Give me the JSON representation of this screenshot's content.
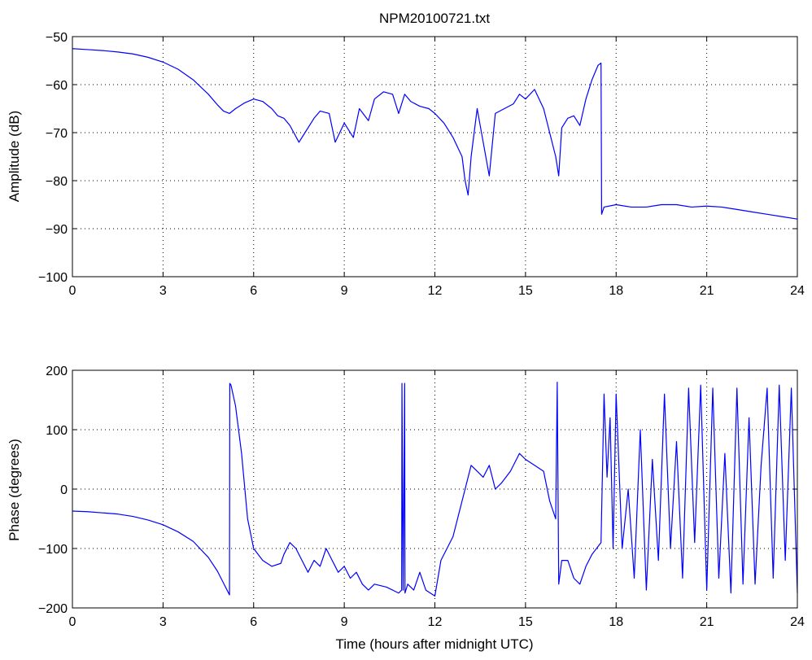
{
  "chart_data": [
    {
      "type": "line",
      "title": "NPM20100721.txt",
      "xlabel": "",
      "ylabel": "Amplitude (dB)",
      "xlim": [
        0,
        24
      ],
      "ylim": [
        -100,
        -50
      ],
      "xticks": [
        "0",
        "3",
        "6",
        "9",
        "12",
        "15",
        "18",
        "21",
        "24"
      ],
      "yticks": [
        "−50",
        "−60",
        "−70",
        "−80",
        "−90",
        "−100"
      ],
      "grid": true,
      "series_color": "#0000ff",
      "series": [
        {
          "x": [
            0,
            0.5,
            1,
            1.5,
            2,
            2.5,
            3,
            3.5,
            4,
            4.5,
            4.8,
            5.0,
            5.2,
            5.4,
            5.7,
            6.0,
            6.3,
            6.6,
            6.8,
            7.0,
            7.2,
            7.5,
            7.7,
            8.0,
            8.2,
            8.5,
            8.7,
            9.0,
            9.3,
            9.5,
            9.8,
            10.0,
            10.3,
            10.6,
            10.8,
            11.0,
            11.2,
            11.5,
            11.8,
            12.0,
            12.3,
            12.6,
            12.9,
            13.0,
            13.1,
            13.2,
            13.4,
            13.6,
            13.8,
            14.0,
            14.3,
            14.6,
            14.8,
            15.0,
            15.3,
            15.6,
            15.8,
            16.0,
            16.1,
            16.2,
            16.4,
            16.6,
            16.8,
            17.0,
            17.2,
            17.4,
            17.5,
            17.52,
            17.6,
            18.0,
            18.5,
            19.0,
            19.5,
            20.0,
            20.5,
            21.0,
            21.5,
            22.0,
            22.5,
            23.0,
            23.5,
            24.0
          ],
          "y": [
            -52.5,
            -52.7,
            -52.9,
            -53.2,
            -53.6,
            -54.3,
            -55.3,
            -56.8,
            -59.0,
            -62.0,
            -64.2,
            -65.5,
            -66.0,
            -65.0,
            -63.8,
            -63.0,
            -63.5,
            -65.0,
            -66.5,
            -67.0,
            -68.5,
            -72.0,
            -70.0,
            -67.0,
            -65.5,
            -66.0,
            -72.0,
            -68.0,
            -71.0,
            -65.0,
            -67.5,
            -63.0,
            -61.5,
            -62.0,
            -66.0,
            -62.0,
            -63.5,
            -64.5,
            -65.0,
            -66.0,
            -68.0,
            -71.0,
            -75.0,
            -80.0,
            -83.0,
            -75.0,
            -65.0,
            -72.0,
            -79.0,
            -66.0,
            -65.0,
            -64.0,
            -62.0,
            -63.0,
            -61.0,
            -65.0,
            -70.0,
            -75.0,
            -79.0,
            -69.0,
            -67.0,
            -66.5,
            -68.5,
            -63.0,
            -59.0,
            -56.0,
            -55.5,
            -87.0,
            -85.5,
            -85.0,
            -85.5,
            -85.5,
            -85.0,
            -85.0,
            -85.5,
            -85.3,
            -85.5,
            -86.0,
            -86.5,
            -87.0,
            -87.5,
            -88.0
          ]
        }
      ]
    },
    {
      "type": "line",
      "title": "",
      "xlabel": "Time (hours after midnight UTC)",
      "ylabel": "Phase (degrees)",
      "xlim": [
        0,
        24
      ],
      "ylim": [
        -200,
        200
      ],
      "xticks": [
        "0",
        "3",
        "6",
        "9",
        "12",
        "15",
        "18",
        "21",
        "24"
      ],
      "yticks": [
        "200",
        "100",
        "0",
        "−100",
        "−200"
      ],
      "grid": true,
      "series_color": "#0000ff",
      "series": [
        {
          "x": [
            0,
            0.5,
            1.0,
            1.5,
            2.0,
            2.5,
            3.0,
            3.5,
            4.0,
            4.5,
            4.8,
            5.0,
            5.2,
            5.21,
            5.25,
            5.4,
            5.6,
            5.8,
            6.0,
            6.3,
            6.6,
            6.9,
            7.0,
            7.2,
            7.4,
            7.6,
            7.8,
            8.0,
            8.2,
            8.4,
            8.6,
            8.8,
            9.0,
            9.2,
            9.4,
            9.6,
            9.8,
            10.0,
            10.4,
            10.8,
            10.9,
            10.91,
            10.95,
            11.0,
            11.01,
            11.1,
            11.3,
            11.5,
            11.7,
            12.0,
            12.2,
            12.4,
            12.6,
            12.8,
            13.0,
            13.2,
            13.4,
            13.6,
            13.8,
            14.0,
            14.2,
            14.5,
            14.8,
            15.0,
            15.3,
            15.6,
            15.8,
            16.0,
            16.05,
            16.1,
            16.15,
            16.2,
            16.4,
            16.6,
            16.8,
            17.0,
            17.2,
            17.5,
            17.6,
            17.7,
            17.8,
            17.9,
            18.0,
            18.2,
            18.4,
            18.6,
            18.8,
            19.0,
            19.2,
            19.4,
            19.6,
            19.8,
            20.0,
            20.2,
            20.4,
            20.6,
            20.8,
            21.0,
            21.2,
            21.4,
            21.6,
            21.8,
            22.0,
            22.2,
            22.4,
            22.6,
            22.8,
            23.0,
            23.2,
            23.4,
            23.6,
            23.8,
            24.0
          ],
          "y": [
            -37,
            -38,
            -40,
            -42,
            -46,
            -52,
            -60,
            -72,
            -88,
            -115,
            -138,
            -158,
            -178,
            178,
            175,
            140,
            60,
            -50,
            -100,
            -120,
            -130,
            -125,
            -110,
            -90,
            -100,
            -120,
            -140,
            -120,
            -130,
            -100,
            -120,
            -140,
            -130,
            -150,
            -140,
            -160,
            -170,
            -160,
            -165,
            -175,
            -170,
            178,
            -170,
            178,
            -175,
            -160,
            -170,
            -140,
            -170,
            -180,
            -120,
            -100,
            -80,
            -40,
            0,
            40,
            30,
            20,
            40,
            0,
            10,
            30,
            60,
            50,
            40,
            30,
            -20,
            -50,
            180,
            -160,
            -140,
            -120,
            -120,
            -150,
            -160,
            -130,
            -110,
            -90,
            160,
            20,
            120,
            -100,
            160,
            -100,
            0,
            -150,
            100,
            -170,
            50,
            -120,
            160,
            -100,
            80,
            -150,
            170,
            -90,
            175,
            -170,
            170,
            -150,
            60,
            -175,
            170,
            -160,
            120,
            -160,
            40,
            170,
            -150,
            175,
            -120,
            170,
            -175
          ]
        }
      ]
    }
  ]
}
